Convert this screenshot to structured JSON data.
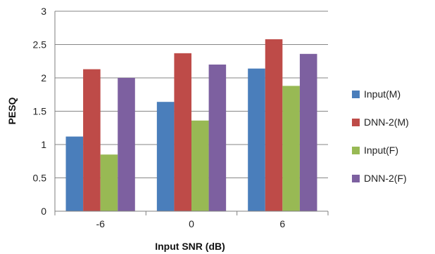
{
  "chart_data": {
    "type": "bar",
    "title": "",
    "xlabel": "Input SNR (dB)",
    "ylabel": "PESQ",
    "categories": [
      "-6",
      "0",
      "6"
    ],
    "ylim": [
      0,
      3
    ],
    "yticks": [
      "0",
      "0.5",
      "1",
      "1.5",
      "2",
      "2.5",
      "3"
    ],
    "grid": true,
    "legend_position": "right",
    "series": [
      {
        "name": "Input(M)",
        "color": "#4a7ebb",
        "values": [
          1.12,
          1.64,
          2.14
        ]
      },
      {
        "name": "DNN-2(M)",
        "color": "#be4b48",
        "values": [
          2.13,
          2.37,
          2.58
        ]
      },
      {
        "name": "Input(F)",
        "color": "#98b954",
        "values": [
          0.85,
          1.36,
          1.88
        ]
      },
      {
        "name": "DNN-2(F)",
        "color": "#7d60a0",
        "values": [
          2.0,
          2.2,
          2.36
        ]
      }
    ]
  }
}
